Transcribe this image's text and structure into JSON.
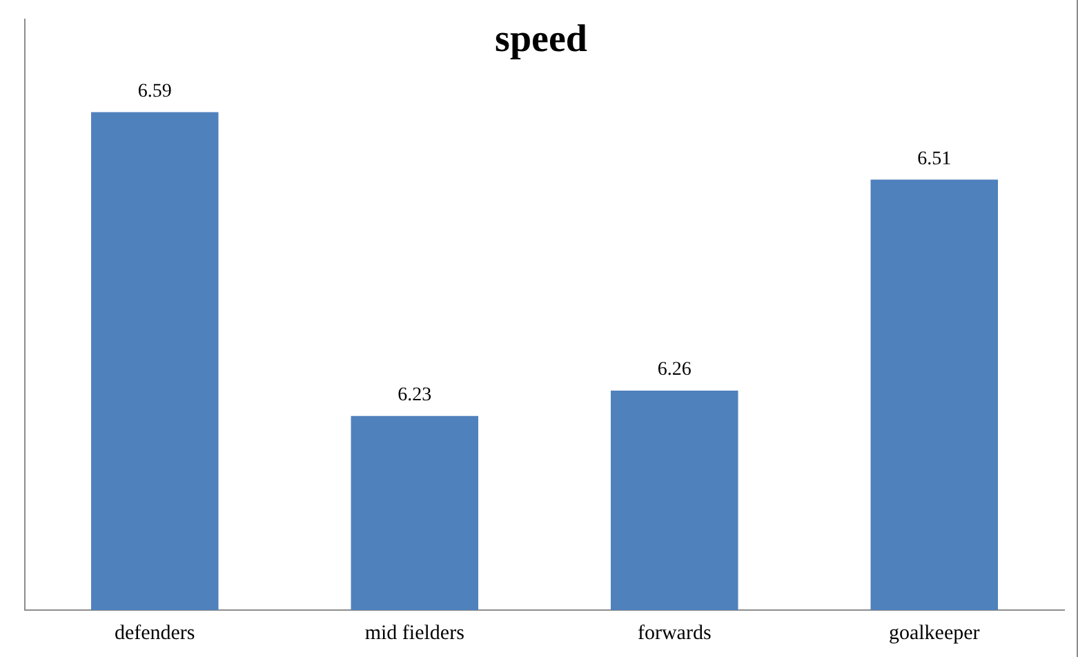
{
  "chart_data": {
    "type": "bar",
    "title": "speed",
    "categories": [
      "defenders",
      "mid fielders",
      "forwards",
      "goalkeeper"
    ],
    "values": [
      6.59,
      6.23,
      6.26,
      6.51
    ],
    "color": "#4f81bd",
    "ylim": [
      6,
      6.7
    ],
    "tick_labels": "x",
    "data_labels": true,
    "grid": false,
    "legend": false
  }
}
